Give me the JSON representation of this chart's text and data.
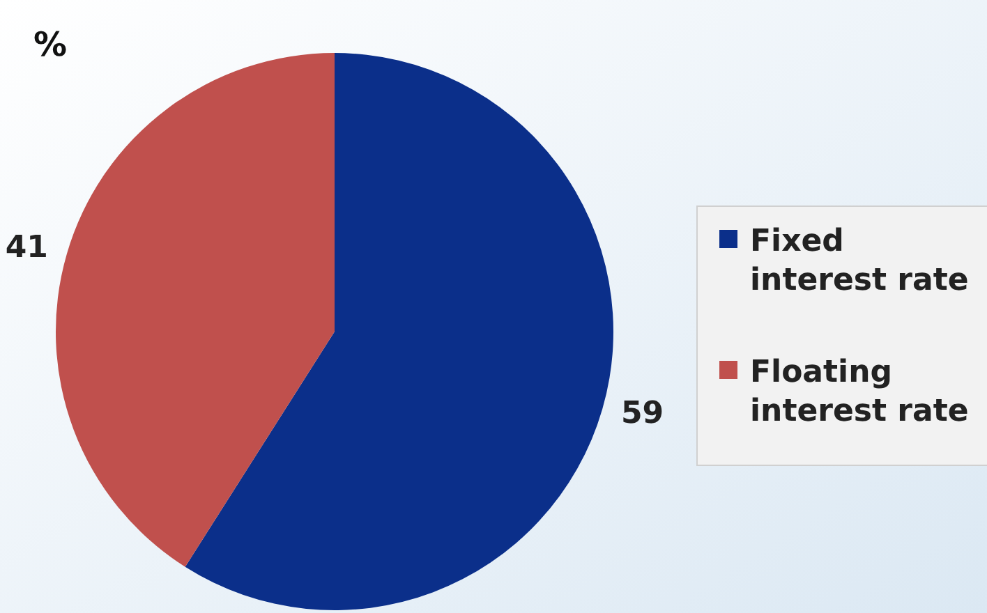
{
  "chart_data": {
    "type": "pie",
    "title": "%",
    "categories": [
      "Fixed interest rate",
      "Floating interest rate"
    ],
    "values": [
      59,
      41
    ],
    "colors": [
      "#0b2f8a",
      "#c0504d"
    ],
    "data_labels": true,
    "legend": "right"
  }
}
